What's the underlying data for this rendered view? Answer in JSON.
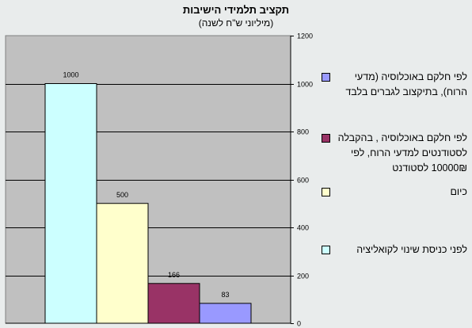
{
  "chart_data": {
    "type": "bar",
    "title": "תקציב תלמידי הישיבות",
    "subtitle": "(מיליוני ש\"ח לשנה)",
    "categories": [
      ""
    ],
    "series": [
      {
        "name": "לפני כניסת שינוי לקואליציה",
        "values": [
          1000
        ],
        "color": "#ccffff"
      },
      {
        "name": "כיום",
        "values": [
          500
        ],
        "color": "#ffffcc"
      },
      {
        "name": "לפי חלקם באוכלוסיה , בהקבלה לסטודנטים למדעי הרוח, לפי 10000₪ לסטודנט",
        "values": [
          166
        ],
        "color": "#993366"
      },
      {
        "name": "לפי חלקם באוכלוסיה (מדעי הרוח), בתיקצוב לגברים בלבד",
        "values": [
          83
        ],
        "color": "#9999ff"
      }
    ],
    "data_labels": [
      "1000",
      "500",
      "166",
      "83"
    ],
    "ylim": [
      0,
      1200
    ],
    "yticks": [
      "0",
      "200",
      "400",
      "600",
      "800",
      "1000",
      "1200"
    ],
    "grid": true,
    "legend_position": "right",
    "plot_background": "#c0c0c0"
  },
  "legend": {
    "items": [
      {
        "label": "לפי חלקם באוכלוסיה (מדעי הרוח), בתיקצוב לגברים בלבד",
        "color": "#9999ff"
      },
      {
        "label": "לפי חלקם באוכלוסיה , בהקבלה לסטודנטים למדעי הרוח, לפי 10000₪ לסטודנט",
        "color": "#993366"
      },
      {
        "label": "כיום",
        "color": "#ffffcc"
      },
      {
        "label": "לפני כניסת שינוי לקואליציה",
        "color": "#ccffff"
      }
    ]
  }
}
